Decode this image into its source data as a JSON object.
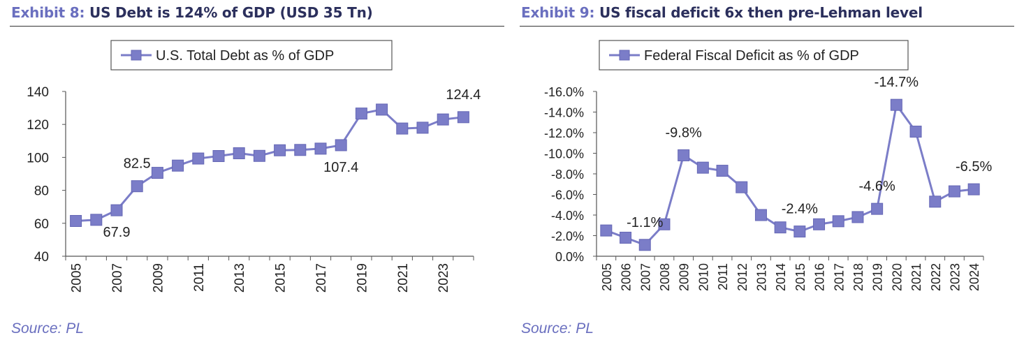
{
  "colors": {
    "series": "#7b7dc8",
    "marker_stroke": "#6567b5",
    "title_accent": "#6a6fbf",
    "title_main": "#2b2f5c",
    "axis": "#555555"
  },
  "panels": [
    {
      "exhibit_label": "Exhibit 8:",
      "title": "US Debt is 124% of GDP (USD 35 Tn)",
      "source": "Source: PL"
    },
    {
      "exhibit_label": "Exhibit 9:",
      "title": "US fiscal deficit 6x then pre-Lehman level",
      "source": "Source: PL"
    }
  ],
  "chart_data": [
    {
      "type": "line",
      "legend": "U.S. Total Debt as % of GDP",
      "legend_position": "top-center",
      "grid": false,
      "x": [
        "2005",
        "2006",
        "2007",
        "2008",
        "2009",
        "2010",
        "2011",
        "2012",
        "2013",
        "2014",
        "2015",
        "2016",
        "2017",
        "2018",
        "2019",
        "2020",
        "2021",
        "2022",
        "2023",
        "2024"
      ],
      "x_tick_labels": [
        "2005",
        "2007",
        "2009",
        "2011",
        "2013",
        "2015",
        "2017",
        "2019",
        "2021",
        "2023"
      ],
      "values": [
        61.4,
        62.1,
        67.9,
        82.5,
        90.6,
        95.0,
        99.3,
        100.8,
        102.5,
        100.9,
        104.3,
        104.5,
        105.3,
        107.4,
        126.6,
        129.0,
        117.5,
        118.0,
        123.0,
        124.4
      ],
      "ylim": [
        40,
        140
      ],
      "yticks": [
        40,
        60,
        80,
        100,
        120,
        140
      ],
      "annotations": [
        {
          "index": 2,
          "text": "67.9",
          "position": "below"
        },
        {
          "index": 3,
          "text": "82.5",
          "position": "above"
        },
        {
          "index": 13,
          "text": "107.4",
          "position": "below"
        },
        {
          "index": 19,
          "text": "124.4",
          "position": "above"
        }
      ]
    },
    {
      "type": "line",
      "legend": "Federal Fiscal Deficit as % of GDP",
      "legend_position": "top-center",
      "grid": false,
      "y_axis_reversed": true,
      "x": [
        "2005",
        "2006",
        "2007",
        "2008",
        "2009",
        "2010",
        "2011",
        "2012",
        "2013",
        "2014",
        "2015",
        "2016",
        "2017",
        "2018",
        "2019",
        "2020",
        "2021",
        "2022",
        "2023",
        "2024"
      ],
      "x_tick_labels": [
        "2005",
        "2006",
        "2007",
        "2008",
        "2009",
        "2010",
        "2011",
        "2012",
        "2013",
        "2014",
        "2015",
        "2016",
        "2017",
        "2018",
        "2019",
        "2020",
        "2021",
        "2022",
        "2023",
        "2024"
      ],
      "values": [
        -2.5,
        -1.8,
        -1.1,
        -3.1,
        -9.8,
        -8.6,
        -8.3,
        -6.7,
        -4.0,
        -2.8,
        -2.4,
        -3.1,
        -3.4,
        -3.8,
        -4.6,
        -14.7,
        -12.1,
        -5.3,
        -6.3,
        -6.5
      ],
      "ylim": [
        0,
        -16
      ],
      "yticks": [
        0,
        -2,
        -4,
        -6,
        -8,
        -10,
        -12,
        -14,
        -16
      ],
      "ytick_labels": [
        "0.0%",
        "-2.0%",
        "-4.0%",
        "-6.0%",
        "-8.0%",
        "-10.0%",
        "-12.0%",
        "-14.0%",
        "-16.0%"
      ],
      "annotations": [
        {
          "index": 2,
          "text": "-1.1%",
          "position": "above"
        },
        {
          "index": 4,
          "text": "-9.8%",
          "position": "above"
        },
        {
          "index": 10,
          "text": "-2.4%",
          "position": "above"
        },
        {
          "index": 14,
          "text": "-4.6%",
          "position": "above"
        },
        {
          "index": 15,
          "text": "-14.7%",
          "position": "above"
        },
        {
          "index": 19,
          "text": "-6.5%",
          "position": "above"
        }
      ]
    }
  ]
}
